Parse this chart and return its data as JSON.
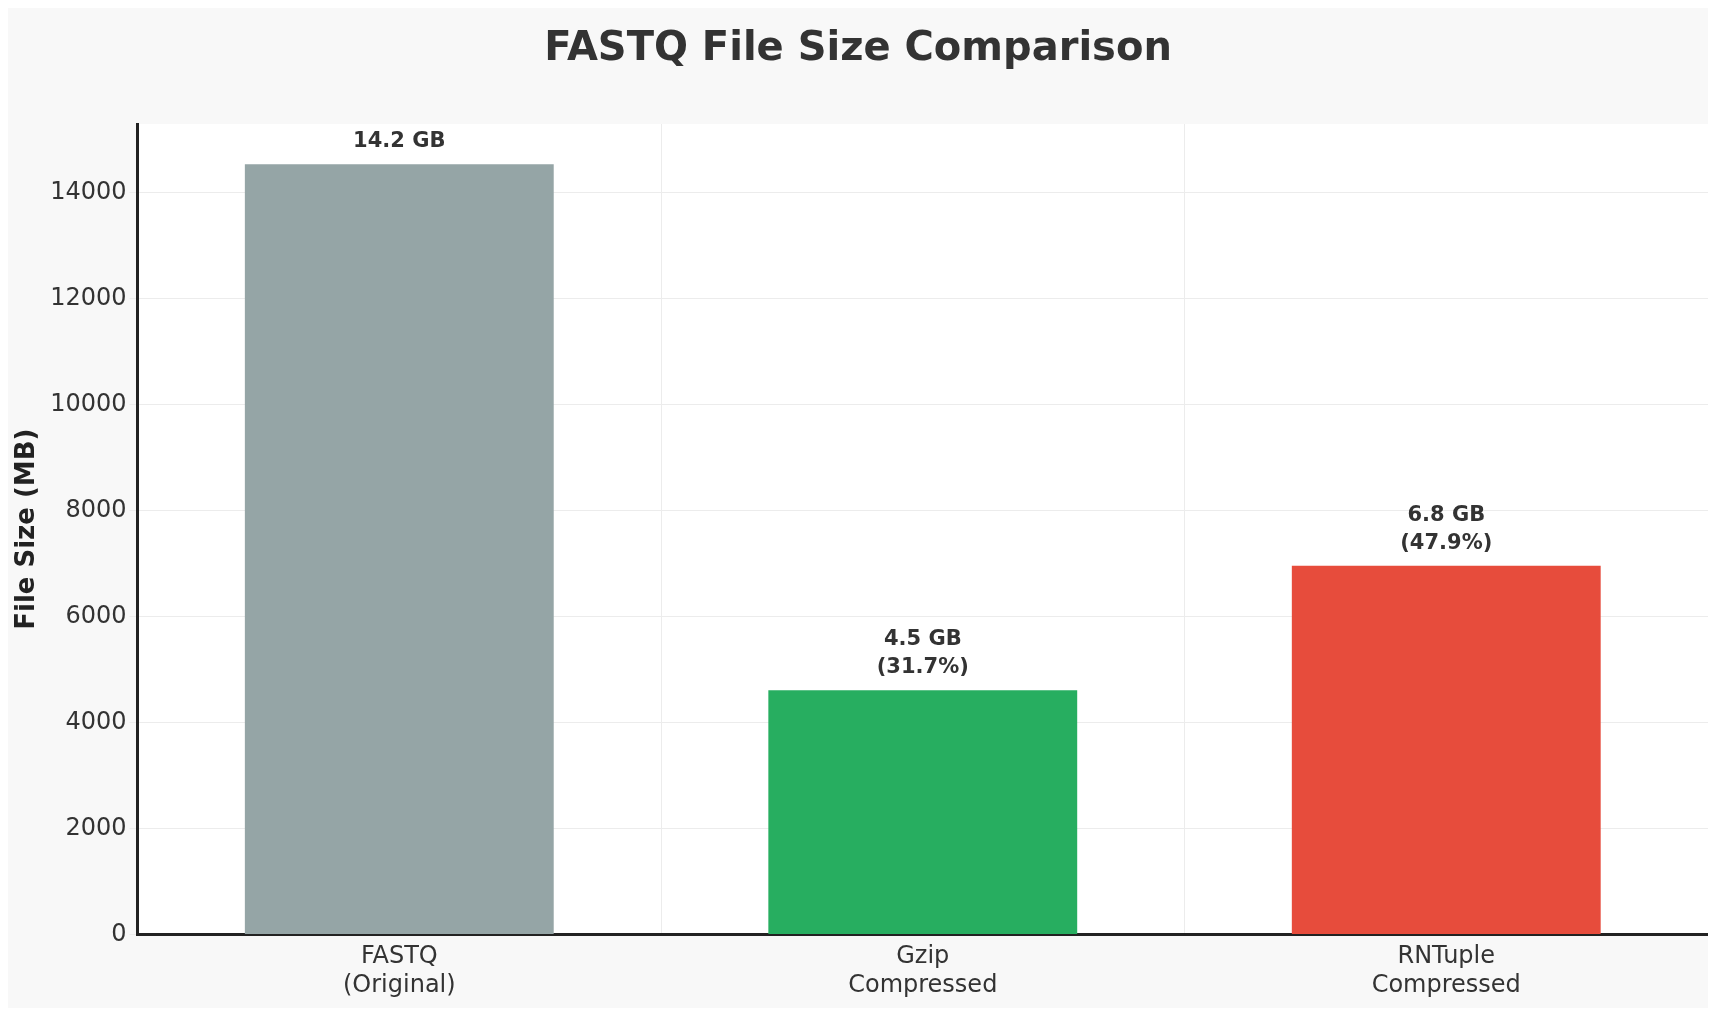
{
  "chart_data": {
    "type": "bar",
    "title": "FASTQ File Size Comparison",
    "ylabel": "File Size (MB)",
    "categories": [
      "FASTQ\n(Original)",
      "Gzip\nCompressed",
      "RNTuple\nCompressed"
    ],
    "values": [
      14540,
      4610,
      6960
    ],
    "colors": [
      "#95a5a6",
      "#27ae60",
      "#e74c3c"
    ],
    "annotations": [
      {
        "text": "14.2 GB",
        "x": "FASTQ\n(Original)",
        "y": 14540
      },
      {
        "text": "4.5 GB\n(31.7%)",
        "x": "Gzip\nCompressed",
        "y": 4610
      },
      {
        "text": "6.8 GB\n(47.9%)",
        "x": "RNTuple\nCompressed",
        "y": 6960
      }
    ],
    "ylim": [
      0,
      15300
    ],
    "yticks": [
      0,
      2000,
      4000,
      6000,
      8000,
      10000,
      12000,
      14000
    ],
    "grid": true,
    "legend": false
  }
}
